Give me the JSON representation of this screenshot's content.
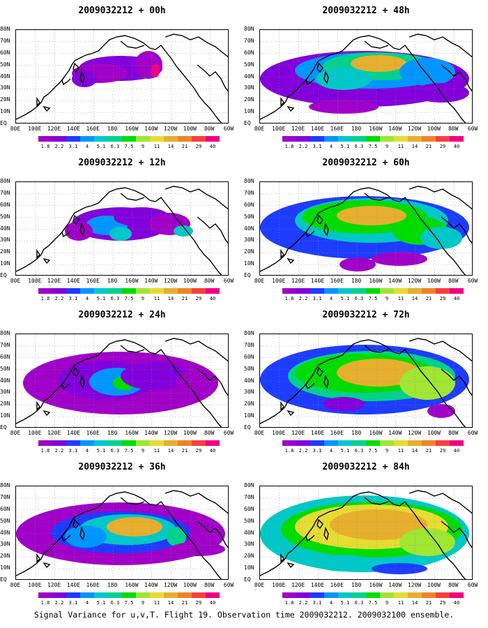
{
  "panels": [
    {
      "title": "2009032212 + 00h",
      "lead_hours": 0
    },
    {
      "title": "2009032212 + 48h",
      "lead_hours": 48
    },
    {
      "title": "2009032212 + 12h",
      "lead_hours": 12
    },
    {
      "title": "2009032212 + 60h",
      "lead_hours": 60
    },
    {
      "title": "2009032212 + 24h",
      "lead_hours": 24
    },
    {
      "title": "2009032212 + 72h",
      "lead_hours": 72
    },
    {
      "title": "2009032212 + 36h",
      "lead_hours": 36
    },
    {
      "title": "2009032212 + 84h",
      "lead_hours": 84
    }
  ],
  "lat_labels": [
    "80N",
    "70N",
    "60N",
    "50N",
    "40N",
    "30N",
    "20N",
    "10N",
    "EQ"
  ],
  "lon_labels": [
    "80E",
    "100E",
    "120E",
    "140E",
    "160E",
    "180",
    "160W",
    "140W",
    "120W",
    "100W",
    "80W",
    "60W"
  ],
  "colorbar": {
    "levels": [
      "1.8",
      "2.2",
      "3.1",
      "4",
      "5.1",
      "6.3",
      "7.5",
      "9",
      "11",
      "14",
      "21",
      "29",
      "40"
    ],
    "colors": [
      "#a000c8",
      "#8200dc",
      "#1e3cff",
      "#0096ff",
      "#00c8c8",
      "#00d28c",
      "#00dc00",
      "#a0e632",
      "#e6dc32",
      "#e6af2d",
      "#f08228",
      "#fa3c3c",
      "#f00082"
    ]
  },
  "caption": "Signal Variance for u,v,T. Flight 19. Observation time 2009032212. 2009032100 ensemble."
}
